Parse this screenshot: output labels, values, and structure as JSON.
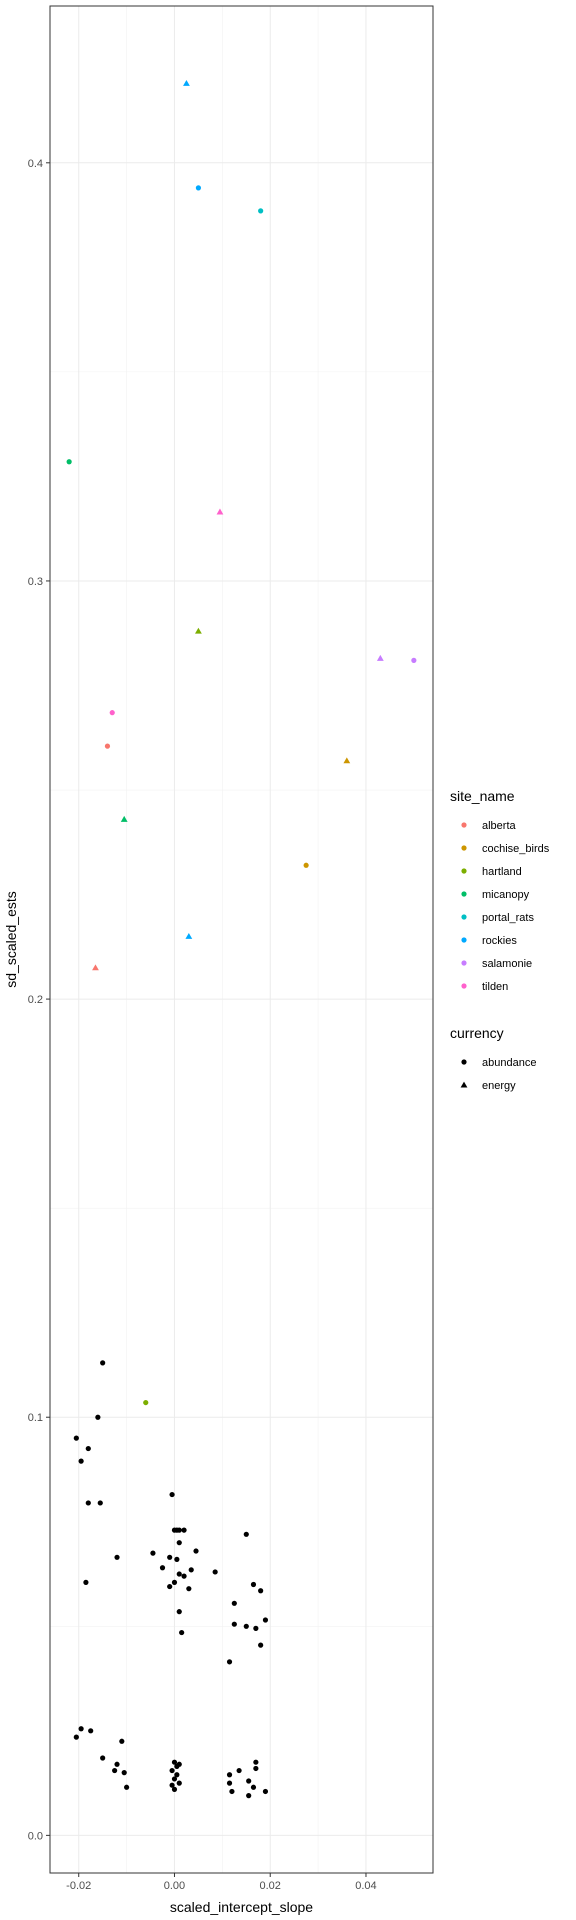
{
  "chart_data": {
    "type": "scatter",
    "xlabel": "scaled_intercept_slope",
    "ylabel": "sd_scaled_ests",
    "xlim": [
      -0.026,
      0.054
    ],
    "ylim": [
      -0.009,
      0.4375
    ],
    "x_ticks": [
      -0.02,
      0.0,
      0.02,
      0.04
    ],
    "x_tick_labels": [
      "-0.02",
      "0.00",
      "0.02",
      "0.04"
    ],
    "y_ticks": [
      0.0,
      0.1,
      0.2,
      0.3,
      0.4
    ],
    "y_tick_labels": [
      "0.0",
      "0.1",
      "0.2",
      "0.3",
      "0.4"
    ],
    "grid": true,
    "legend_position": "right",
    "legends": {
      "color": {
        "title": "site_name",
        "entries": [
          {
            "label": "alberta",
            "color": "#F8766D"
          },
          {
            "label": "cochise_birds",
            "color": "#CD9600"
          },
          {
            "label": "hartland",
            "color": "#7CAE00"
          },
          {
            "label": "micanopy",
            "color": "#00BE67"
          },
          {
            "label": "portal_rats",
            "color": "#00BFC4"
          },
          {
            "label": "rockies",
            "color": "#00A9FF"
          },
          {
            "label": "salamonie",
            "color": "#C77CFF"
          },
          {
            "label": "tilden",
            "color": "#FF61CC"
          }
        ]
      },
      "shape": {
        "title": "currency",
        "entries": [
          {
            "label": "abundance",
            "shape": "circle"
          },
          {
            "label": "energy",
            "shape": "triangle"
          }
        ]
      }
    },
    "series": [
      {
        "site": "highlighted",
        "points": [
          {
            "x": 0.0025,
            "y": 0.419,
            "site": "rockies",
            "currency": "energy"
          },
          {
            "x": 0.005,
            "y": 0.394,
            "site": "rockies",
            "currency": "abundance"
          },
          {
            "x": 0.018,
            "y": 0.3885,
            "site": "portal_rats",
            "currency": "abundance"
          },
          {
            "x": -0.022,
            "y": 0.3285,
            "site": "micanopy",
            "currency": "abundance"
          },
          {
            "x": 0.0095,
            "y": 0.3165,
            "site": "tilden",
            "currency": "energy"
          },
          {
            "x": 0.005,
            "y": 0.288,
            "site": "hartland",
            "currency": "energy"
          },
          {
            "x": 0.043,
            "y": 0.2815,
            "site": "salamonie",
            "currency": "energy"
          },
          {
            "x": 0.05,
            "y": 0.281,
            "site": "salamonie",
            "currency": "abundance"
          },
          {
            "x": -0.013,
            "y": 0.2685,
            "site": "tilden",
            "currency": "abundance"
          },
          {
            "x": -0.014,
            "y": 0.2605,
            "site": "alberta",
            "currency": "abundance"
          },
          {
            "x": 0.036,
            "y": 0.257,
            "site": "cochise_birds",
            "currency": "energy"
          },
          {
            "x": -0.0105,
            "y": 0.243,
            "site": "micanopy",
            "currency": "energy"
          },
          {
            "x": 0.0275,
            "y": 0.232,
            "site": "cochise_birds",
            "currency": "abundance"
          },
          {
            "x": 0.003,
            "y": 0.215,
            "site": "rockies",
            "currency": "energy"
          },
          {
            "x": -0.0165,
            "y": 0.2075,
            "site": "alberta",
            "currency": "energy"
          },
          {
            "x": -0.006,
            "y": 0.1035,
            "site": "hartland",
            "currency": "abundance"
          }
        ]
      },
      {
        "site": "other",
        "color": "#000000",
        "currency": "abundance",
        "points": [
          [
            -0.015,
            0.113
          ],
          [
            -0.016,
            0.1
          ],
          [
            -0.0205,
            0.095
          ],
          [
            -0.018,
            0.0925
          ],
          [
            -0.0195,
            0.0895
          ],
          [
            -0.018,
            0.0795
          ],
          [
            -0.0155,
            0.0795
          ],
          [
            -0.012,
            0.0665
          ],
          [
            -0.0185,
            0.0605
          ],
          [
            -0.0005,
            0.0815
          ],
          [
            0.0,
            0.073
          ],
          [
            0.0005,
            0.073
          ],
          [
            0.001,
            0.073
          ],
          [
            0.002,
            0.073
          ],
          [
            0.001,
            0.07
          ],
          [
            -0.0045,
            0.0675
          ],
          [
            0.0045,
            0.068
          ],
          [
            -0.001,
            0.0665
          ],
          [
            0.0005,
            0.066
          ],
          [
            -0.0025,
            0.064
          ],
          [
            0.0035,
            0.0635
          ],
          [
            0.0085,
            0.063
          ],
          [
            0.001,
            0.0625
          ],
          [
            0.002,
            0.062
          ],
          [
            0.0,
            0.0605
          ],
          [
            0.003,
            0.059
          ],
          [
            -0.001,
            0.0595
          ],
          [
            0.001,
            0.0535
          ],
          [
            0.0015,
            0.0485
          ],
          [
            0.015,
            0.072
          ],
          [
            0.0165,
            0.06
          ],
          [
            0.018,
            0.0585
          ],
          [
            0.0125,
            0.0555
          ],
          [
            0.019,
            0.0515
          ],
          [
            0.0125,
            0.0505
          ],
          [
            0.015,
            0.05
          ],
          [
            0.017,
            0.0495
          ],
          [
            0.018,
            0.0455
          ],
          [
            0.0115,
            0.0415
          ],
          [
            -0.0195,
            0.0255
          ],
          [
            -0.0175,
            0.025
          ],
          [
            -0.0205,
            0.0235
          ],
          [
            -0.011,
            0.0225
          ],
          [
            -0.015,
            0.0185
          ],
          [
            -0.012,
            0.017
          ],
          [
            -0.0125,
            0.0155
          ],
          [
            -0.0105,
            0.015
          ],
          [
            -0.01,
            0.0115
          ],
          [
            0.0,
            0.0175
          ],
          [
            0.0005,
            0.0165
          ],
          [
            0.001,
            0.017
          ],
          [
            -0.0005,
            0.0155
          ],
          [
            0.0005,
            0.0145
          ],
          [
            0.0,
            0.0135
          ],
          [
            0.001,
            0.0125
          ],
          [
            -0.0005,
            0.012
          ],
          [
            0.0,
            0.011
          ],
          [
            0.017,
            0.0175
          ],
          [
            0.017,
            0.016
          ],
          [
            0.0115,
            0.0145
          ],
          [
            0.0155,
            0.013
          ],
          [
            0.0115,
            0.0125
          ],
          [
            0.0165,
            0.0115
          ],
          [
            0.012,
            0.0105
          ],
          [
            0.019,
            0.0105
          ],
          [
            0.0155,
            0.0095
          ],
          [
            0.0135,
            0.0155
          ]
        ]
      }
    ]
  }
}
